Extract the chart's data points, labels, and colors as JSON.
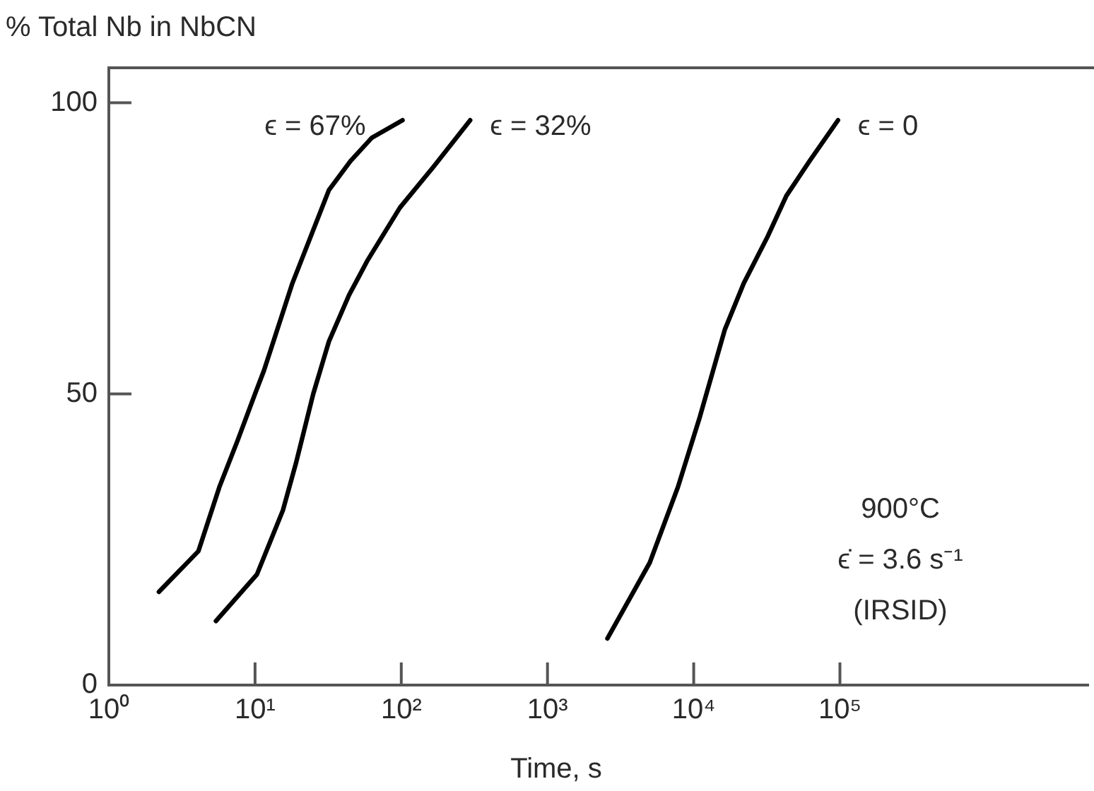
{
  "chart_data": {
    "type": "line",
    "ylabel": "% Total Nb in NbCN",
    "xlabel": "Time, s",
    "log": "x",
    "grid": false,
    "legend": false,
    "marker": "none",
    "line_style": "solid",
    "xlim": [
      1,
      5000000
    ],
    "xticks": [
      {
        "value": 1,
        "label": "10⁰"
      },
      {
        "value": 10,
        "label": "10¹"
      },
      {
        "value": 100,
        "label": "10²"
      },
      {
        "value": 1000,
        "label": "10³"
      },
      {
        "value": 10000,
        "label": "10⁴"
      },
      {
        "value": 100000,
        "label": "10⁵"
      }
    ],
    "ylim": [
      0,
      106
    ],
    "yticks": [
      0,
      50,
      100
    ],
    "series": [
      {
        "name": "ϵ = 67%",
        "color": "#000000",
        "x": [
          2.2,
          4.1,
          5.7,
          7.6,
          10,
          11.5,
          18,
          24,
          32,
          45,
          63,
          102
        ],
        "values": [
          16,
          23,
          34,
          42,
          50,
          54,
          69,
          77,
          85,
          90,
          94,
          97
        ]
      },
      {
        "name": "ϵ = 32%",
        "color": "#000000",
        "x": [
          5.4,
          10.3,
          15.5,
          19,
          25,
          32,
          44,
          59,
          98,
          166,
          296
        ],
        "values": [
          11,
          19,
          30,
          38,
          50,
          59,
          67,
          73,
          82,
          89,
          97
        ]
      },
      {
        "name": "ϵ = 0",
        "color": "#000000",
        "x": [
          2570,
          5000,
          7800,
          11000,
          16300,
          22000,
          32000,
          43000,
          62000,
          97000
        ],
        "values": [
          8,
          21,
          34,
          46,
          61,
          69,
          77,
          84,
          90,
          97
        ]
      }
    ],
    "annotations": [
      "900°C",
      "ϵ̇ = 3.6 s⁻¹",
      "(IRSID)"
    ]
  }
}
